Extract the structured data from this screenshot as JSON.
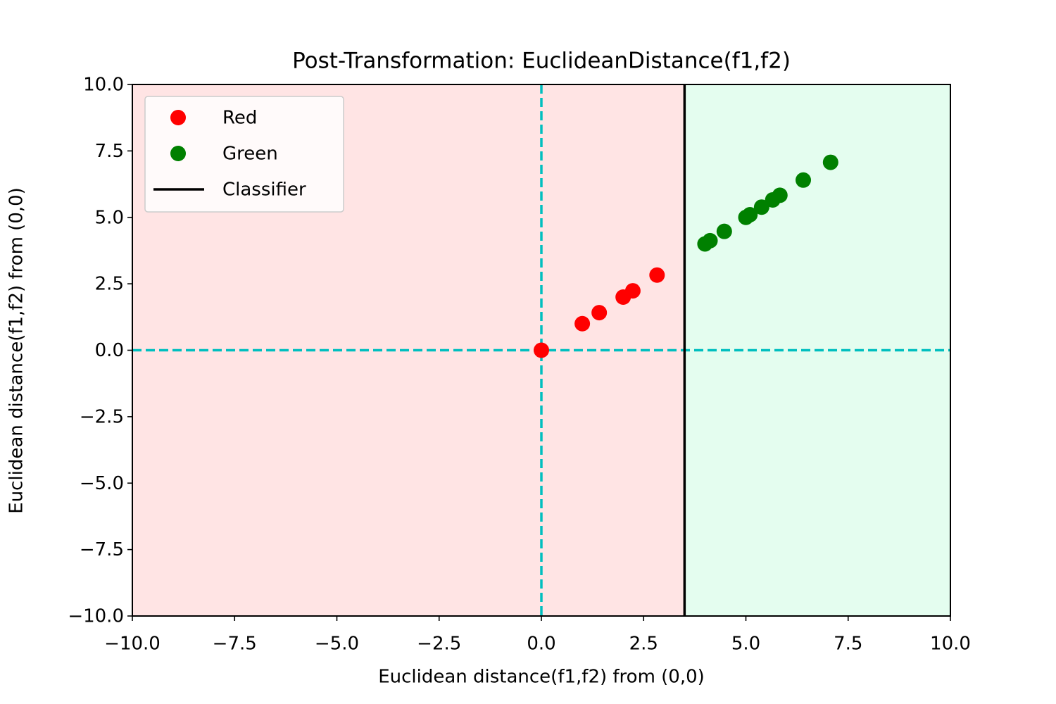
{
  "chart_data": {
    "type": "scatter",
    "title": "Post-Transformation: EuclideanDistance(f1,f2)",
    "xlabel": "Euclidean distance(f1,f2) from (0,0)",
    "ylabel": "Euclidean distance(f1,f2) from (0,0)",
    "xlim": [
      -10,
      10
    ],
    "ylim": [
      -10,
      10
    ],
    "xticks": [
      {
        "value": -10,
        "label": "−10.0"
      },
      {
        "value": -7.5,
        "label": "−7.5"
      },
      {
        "value": -5,
        "label": "−5.0"
      },
      {
        "value": -2.5,
        "label": "−2.5"
      },
      {
        "value": 0,
        "label": "0.0"
      },
      2.5,
      {
        "value": 5,
        "label": "5.0"
      },
      7.5,
      {
        "value": 10,
        "label": "10.0"
      }
    ],
    "yticks": [
      {
        "value": -10,
        "label": "−10.0"
      },
      {
        "value": -7.5,
        "label": "−7.5"
      },
      {
        "value": -5,
        "label": "−5.0"
      },
      {
        "value": -2.5,
        "label": "−2.5"
      },
      {
        "value": 0,
        "label": "0.0"
      },
      2.5,
      {
        "value": 5,
        "label": "5.0"
      },
      7.5,
      {
        "value": 10,
        "label": "10.0"
      }
    ],
    "series": [
      {
        "name": "Red",
        "color": "#ff0000",
        "x": [
          0,
          1,
          1.414,
          2,
          2.236,
          2.828
        ],
        "values": [
          0,
          1,
          1.414,
          2,
          2.236,
          2.828
        ]
      },
      {
        "name": "Green",
        "color": "#008000",
        "x": [
          4,
          4.123,
          4.472,
          5,
          5.099,
          5.385,
          5.657,
          5.831,
          6.403,
          7.071
        ],
        "values": [
          4,
          4.123,
          4.472,
          5,
          5.099,
          5.385,
          5.657,
          5.831,
          6.403,
          7.071
        ]
      }
    ],
    "classifier": {
      "name": "Classifier",
      "color": "#000000",
      "x": 3.5
    },
    "region_colors": [
      "#ffe4e4",
      "#e4fdef"
    ],
    "reference_lines": {
      "color": "#00bfbf",
      "x": 0,
      "y": 0
    },
    "legend": "upper left"
  }
}
